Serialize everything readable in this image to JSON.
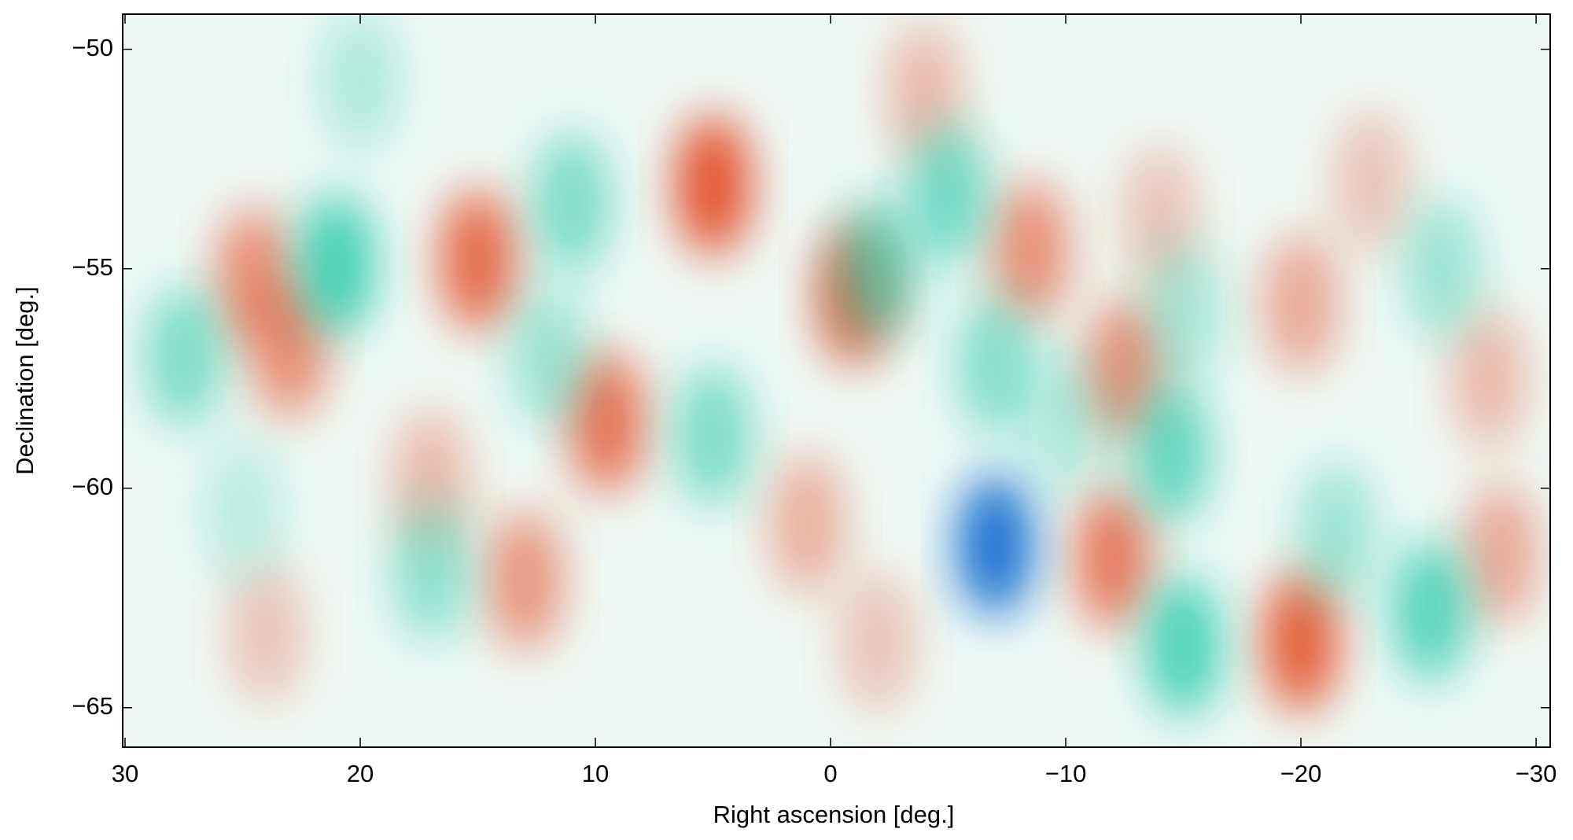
{
  "chart_data": {
    "type": "heatmap",
    "x_label": "Right ascension [deg.]",
    "y_label": "Declination [deg.]",
    "xlim": [
      30.1,
      -30.6
    ],
    "ylim": [
      -65.9,
      -49.2
    ],
    "xticks": [
      30,
      20,
      10,
      0,
      {
        "value": -10,
        "label": "−10"
      },
      {
        "value": -20,
        "label": "−20"
      },
      {
        "value": -30,
        "label": "−30"
      }
    ],
    "yticks": [
      {
        "value": -50,
        "label": "−50"
      },
      {
        "value": -55,
        "label": "−55"
      },
      {
        "value": -60,
        "label": "−60"
      },
      {
        "value": -65,
        "label": "−65"
      }
    ],
    "positive_color": "#e4502a",
    "negative_color": "#22c9a6",
    "strong_negative_color": "#1670d0",
    "background_color": "#eef8f5",
    "spots": {
      "x": [
        5,
        15,
        24.5,
        23,
        9.5,
        -1,
        -8.5,
        -12.5,
        -20,
        -12,
        13,
        -20,
        -28,
        -28.5,
        1,
        17,
        24,
        -4,
        -2,
        -23,
        -14,
        21,
        27.5,
        -7,
        -15,
        -14.5,
        -25.5,
        -5,
        -2,
        5,
        11,
        12,
        17,
        -7,
        -21.5,
        -26,
        -15,
        20,
        -10,
        25
      ],
      "y": [
        -53.1,
        -54.8,
        -55.2,
        -56.8,
        -58.5,
        -55.6,
        -54.6,
        -57.3,
        -63.5,
        -61.6,
        -62.1,
        -55.8,
        -57.5,
        -61.5,
        -60.8,
        -59.8,
        -63.3,
        -51,
        -63.5,
        -53,
        -53.8,
        -54.9,
        -57,
        -61.3,
        -63.6,
        -59.2,
        -62.8,
        -53.3,
        -55,
        -58.8,
        -53.5,
        -57,
        -61.9,
        -57.2,
        -61,
        -55,
        -56,
        -50.7,
        -58.5,
        -60.5
      ],
      "values": [
        1.0,
        0.8,
        0.6,
        0.6,
        0.75,
        0.8,
        0.6,
        0.6,
        0.85,
        0.7,
        0.55,
        0.45,
        0.35,
        0.45,
        0.4,
        0.35,
        0.3,
        0.35,
        0.3,
        0.3,
        0.3,
        -0.8,
        -0.55,
        -1.0,
        -0.75,
        -0.65,
        -0.7,
        -0.6,
        -0.6,
        -0.55,
        -0.55,
        -0.4,
        -0.45,
        -0.5,
        -0.4,
        -0.4,
        -0.35,
        -0.3,
        -0.3,
        -0.25
      ]
    }
  }
}
